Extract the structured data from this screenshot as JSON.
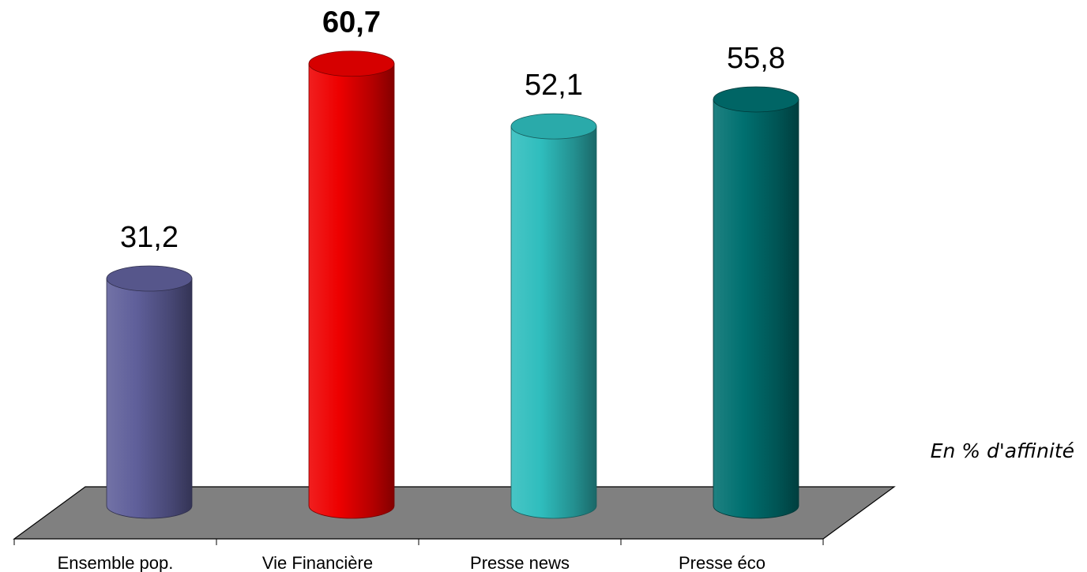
{
  "chart_data": {
    "type": "bar",
    "style": "3d-cylinder",
    "categories": [
      "Ensemble pop.",
      "Vie Financière",
      "Presse news",
      "Presse éco"
    ],
    "values": [
      31.2,
      60.7,
      52.1,
      55.8
    ],
    "value_labels": [
      "31,2",
      "60,7",
      "52,1",
      "55,8"
    ],
    "highlight_index": 1,
    "colors": [
      "#5f5f9a",
      "#ee0000",
      "#2fbdbd",
      "#007070"
    ],
    "floor_color": "#808080",
    "title": "",
    "xlabel": "",
    "ylabel": "",
    "ylim": [
      0,
      65
    ],
    "grid": false,
    "legend": false,
    "annotation": "En % d'affinité"
  }
}
